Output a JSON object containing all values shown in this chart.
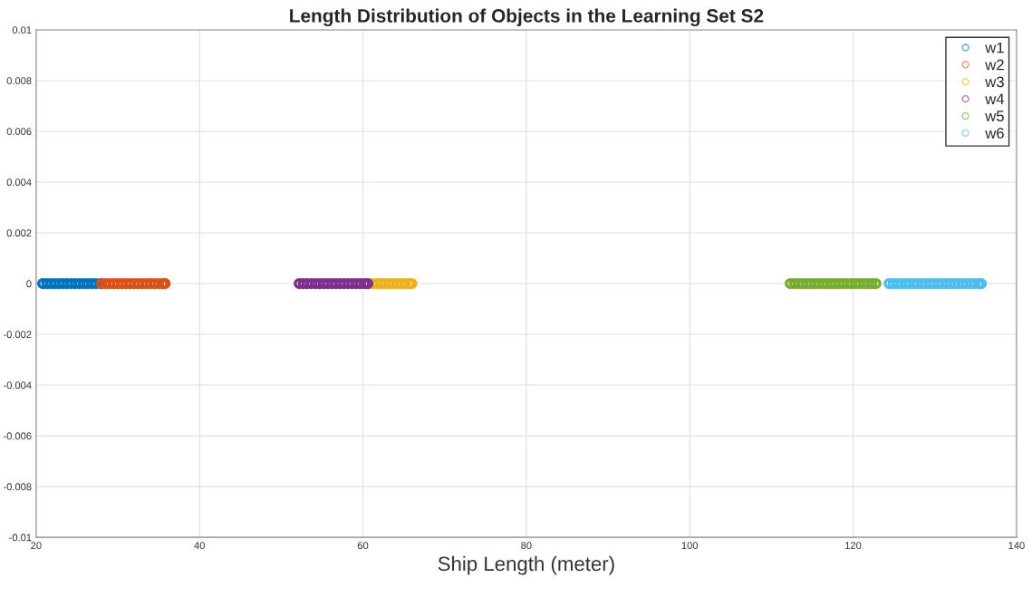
{
  "chart_data": {
    "type": "scatter",
    "title": "Length Distribution of Objects in the Learning Set S2",
    "xlabel": "Ship Length (meter)",
    "series": [
      {
        "name": "w1",
        "color": "#0072bd",
        "x": [
          20.8,
          21.3,
          21.8,
          22.3,
          22.8,
          23.3,
          23.8,
          24.3,
          24.8,
          25.3,
          25.8,
          26.3,
          26.8,
          27.3,
          27.9
        ],
        "values": [
          0,
          0,
          0,
          0,
          0,
          0,
          0,
          0,
          0,
          0,
          0,
          0,
          0,
          0,
          0
        ]
      },
      {
        "name": "w2",
        "color": "#d95319",
        "x": [
          28.0,
          28.5,
          29.0,
          29.5,
          30.0,
          30.5,
          31.0,
          31.5,
          32.0,
          32.5,
          33.0,
          33.5,
          34.0,
          34.5,
          35.0,
          35.5,
          35.8
        ],
        "values": [
          0,
          0,
          0,
          0,
          0,
          0,
          0,
          0,
          0,
          0,
          0,
          0,
          0,
          0,
          0,
          0,
          0
        ]
      },
      {
        "name": "w3",
        "color": "#edb120",
        "x": [
          60.7,
          61.2,
          61.7,
          62.2,
          62.7,
          63.2,
          63.7,
          64.2,
          64.7,
          65.2,
          65.7,
          66.0
        ],
        "values": [
          0,
          0,
          0,
          0,
          0,
          0,
          0,
          0,
          0,
          0,
          0,
          0
        ]
      },
      {
        "name": "w4",
        "color": "#7e2f8e",
        "x": [
          52.2,
          52.7,
          53.2,
          53.7,
          54.2,
          54.7,
          55.2,
          55.7,
          56.2,
          56.7,
          57.2,
          57.7,
          58.2,
          58.7,
          59.2,
          59.7,
          60.2,
          60.6
        ],
        "values": [
          0,
          0,
          0,
          0,
          0,
          0,
          0,
          0,
          0,
          0,
          0,
          0,
          0,
          0,
          0,
          0,
          0,
          0
        ]
      },
      {
        "name": "w5",
        "color": "#77ac30",
        "x": [
          112.3,
          112.8,
          113.3,
          113.8,
          114.3,
          114.8,
          115.3,
          115.8,
          116.3,
          116.8,
          117.3,
          117.8,
          118.3,
          118.8,
          119.3,
          119.8,
          120.3,
          120.8,
          121.3,
          121.8,
          122.3,
          122.8
        ],
        "values": [
          0,
          0,
          0,
          0,
          0,
          0,
          0,
          0,
          0,
          0,
          0,
          0,
          0,
          0,
          0,
          0,
          0,
          0,
          0,
          0,
          0,
          0
        ]
      },
      {
        "name": "w6",
        "color": "#4dbeee",
        "x": [
          124.4,
          124.9,
          125.4,
          125.9,
          126.4,
          126.9,
          127.4,
          127.9,
          128.4,
          128.9,
          129.4,
          129.9,
          130.4,
          130.9,
          131.4,
          131.9,
          132.4,
          132.9,
          133.4,
          133.9,
          134.4,
          134.9,
          135.4,
          135.7
        ],
        "values": [
          0,
          0,
          0,
          0,
          0,
          0,
          0,
          0,
          0,
          0,
          0,
          0,
          0,
          0,
          0,
          0,
          0,
          0,
          0,
          0,
          0,
          0,
          0,
          0
        ]
      }
    ],
    "xlim": [
      20,
      140
    ],
    "xticks": [
      20,
      40,
      60,
      80,
      100,
      120,
      140
    ],
    "ylim": [
      -0.01,
      0.01
    ],
    "yticks": [
      -0.01,
      -0.008,
      -0.006,
      -0.004,
      -0.002,
      0,
      0.002,
      0.004,
      0.006,
      0.008,
      0.01
    ],
    "grid": true,
    "legend": "top right",
    "marker": "circle"
  }
}
